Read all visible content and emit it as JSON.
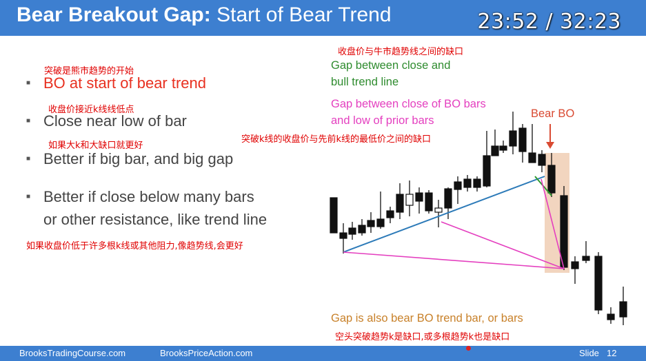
{
  "slide": {
    "title_bold": "Bear Breakout Gap:",
    "title_rest": "Start of Bear Trend",
    "timer": "23:52 / 32:23"
  },
  "bullets": [
    {
      "cn": "突破是熊市趋势的开始",
      "text": "BO at start of bear trend"
    },
    {
      "cn": "收盘价接近k线线低点",
      "text": "Close near low of bar"
    },
    {
      "cn": "如果大k和大缺口就更好",
      "text": "Better if big bar, and big gap"
    },
    {
      "text_line1": "Better if close below many bars",
      "text_line2": "or other resistance, like trend line",
      "cn": "如果收盘价低于许多根k线或其他阻力,像趋势线,会更好"
    }
  ],
  "annotations": {
    "gap_trendline_cn": "收盘价与牛市趋势线之间的缺口",
    "gap_trendline_line1": "Gap between close and",
    "gap_trendline_line2": "bull trend line",
    "gap_prior_line1": "Gap between close of BO bars",
    "gap_prior_line2": "and low of prior bars",
    "gap_prior_cn": "突破k线的收盘价与先前k线的最低价之间的缺口",
    "bear_bo": "Bear BO",
    "gap_trendbar": "Gap is also bear BO trend bar, or bars",
    "gap_trendbar_cn": "空头突破趋势k是缺口,或多根趋势k也是缺口"
  },
  "footer": {
    "left": "BrooksTradingCourse.com",
    "middle": "BrooksPriceAction.com",
    "slide_label": "Slide",
    "slide_number": "12"
  },
  "colors": {
    "header": "#3d7fd0",
    "red_text": "#e83020",
    "green_text": "#2e8b2e",
    "pink_text": "#e43fbf",
    "orange_text": "#c8812a",
    "trendline": "#2c7ab8",
    "highlight": "#f2d5bf"
  }
}
